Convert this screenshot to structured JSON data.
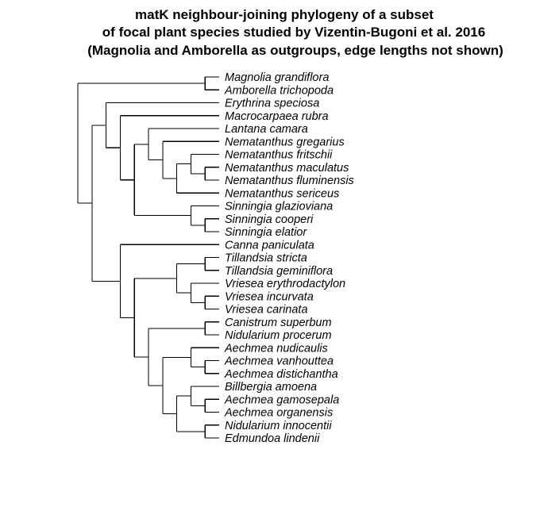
{
  "title": {
    "line1": "matK neighbour-joining phylogeny of a subset",
    "line2": "of focal plant species studied by Vizentin-Bugoni et al. 2016",
    "line3": "(Magnolia and Amborella as outgroups, edge lengths not shown)"
  },
  "tips": [
    "Magnolia grandiflora",
    "Amborella trichopoda",
    "Erythrina speciosa",
    "Macrocarpaea rubra",
    "Lantana camara",
    "Nematanthus gregarius",
    "Nematanthus fritschii",
    "Nematanthus maculatus",
    "Nematanthus fluminensis",
    "Nematanthus sericeus",
    "Sinningia glazioviana",
    "Sinningia cooperi",
    "Sinningia elatior",
    "Canna paniculata",
    "Tillandsia stricta",
    "Tillandsia geminiflora",
    "Vriesea erythrodactylon",
    "Vriesea incurvata",
    "Vriesea carinata",
    "Canistrum superbum",
    "Nidularium procerum",
    "Aechmea nudicaulis",
    "Aechmea vanhouttea",
    "Aechmea distichantha",
    "Billbergia amoena",
    "Aechmea gamosepala",
    "Aechmea organensis",
    "Nidularium innocentii",
    "Edmundoa lindenii"
  ],
  "tree": {
    "children": [
      {
        "children": [
          {
            "tip": 0
          },
          {
            "tip": 1
          }
        ]
      },
      {
        "children": [
          {
            "children": [
              {
                "tip": 2
              },
              {
                "children": [
                  {
                    "tip": 3
                  },
                  {
                    "children": [
                      {
                        "children": [
                          {
                            "tip": 4
                          },
                          {
                            "children": [
                              {
                                "tip": 5
                              },
                              {
                                "children": [
                                  {
                                    "children": [
                                      {
                                        "tip": 6
                                      },
                                      {
                                        "children": [
                                          {
                                            "tip": 7
                                          },
                                          {
                                            "tip": 8
                                          }
                                        ]
                                      }
                                    ]
                                  },
                                  {
                                    "tip": 9
                                  }
                                ]
                              }
                            ]
                          }
                        ]
                      },
                      {
                        "children": [
                          {
                            "tip": 10
                          },
                          {
                            "children": [
                              {
                                "tip": 11
                              },
                              {
                                "tip": 12
                              }
                            ]
                          }
                        ]
                      }
                    ]
                  }
                ]
              }
            ]
          },
          {
            "children": [
              {
                "tip": 13
              },
              {
                "children": [
                  {
                    "children": [
                      {
                        "children": [
                          {
                            "tip": 14
                          },
                          {
                            "tip": 15
                          }
                        ]
                      },
                      {
                        "children": [
                          {
                            "tip": 16
                          },
                          {
                            "children": [
                              {
                                "tip": 17
                              },
                              {
                                "tip": 18
                              }
                            ]
                          }
                        ]
                      }
                    ]
                  },
                  {
                    "children": [
                      {
                        "children": [
                          {
                            "tip": 19
                          },
                          {
                            "tip": 20
                          }
                        ]
                      },
                      {
                        "children": [
                          {
                            "children": [
                              {
                                "tip": 21
                              },
                              {
                                "children": [
                                  {
                                    "tip": 22
                                  },
                                  {
                                    "tip": 23
                                  }
                                ]
                              }
                            ]
                          },
                          {
                            "children": [
                              {
                                "children": [
                                  {
                                    "tip": 24
                                  },
                                  {
                                    "children": [
                                      {
                                        "tip": 25
                                      },
                                      {
                                        "tip": 26
                                      }
                                    ]
                                  }
                                ]
                              },
                              {
                                "children": [
                                  {
                                    "tip": 27
                                  },
                                  {
                                    "tip": 28
                                  }
                                ]
                              }
                            ]
                          }
                        ]
                      }
                    ]
                  }
                ]
              }
            ]
          }
        ]
      }
    ]
  }
}
